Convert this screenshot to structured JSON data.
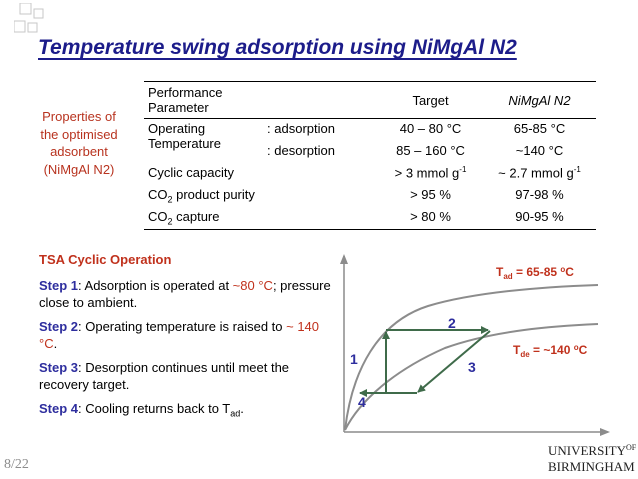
{
  "title": "Temperature swing adsorption using NiMgAl N2",
  "left_note": [
    "Properties of",
    "the optimised",
    "adsorbent",
    "(NiMgAl N2)"
  ],
  "table": {
    "headers": [
      "Performance Parameter",
      "",
      "Target",
      "NiMgAl N2"
    ],
    "rows": [
      {
        "param": "Operating Temperature",
        "sub": ": adsorption",
        "target": "40 – 80 °C",
        "value": "65-85 °C"
      },
      {
        "param": "",
        "sub": ": desorption",
        "target": "85 – 160 °C",
        "value": "~140 °C"
      },
      {
        "param": "Cyclic capacity",
        "sub": "",
        "target_main": "> 3 mmol g",
        "target_sup": "-1",
        "value_main": "~ 2.7 mmol g",
        "value_sup": "-1"
      },
      {
        "param_pre": "CO",
        "param_sub": "2",
        "param_post": " product purity",
        "target": "> 95 %",
        "value": "97-98 %"
      },
      {
        "param_pre": "CO",
        "param_sub": "2",
        "param_post": " capture",
        "target": "> 80 %",
        "value": "90-95 %"
      }
    ]
  },
  "tsa": {
    "heading": "TSA Cyclic Operation",
    "steps": [
      {
        "label": "Step 1",
        "text1": ": Adsorption is operated at ",
        "hl": "~80 °C",
        "text2": "; pressure close to ambient."
      },
      {
        "label": "Step 2",
        "text1": ": Operating temperature is raised to ",
        "hl": "~ 140 °C",
        "text2": "."
      },
      {
        "label": "Step 3",
        "text1": ": Desorption continues until meet the recovery target.",
        "hl": "",
        "text2": ""
      },
      {
        "label": "Step 4",
        "text1": ": Cooling returns back to T",
        "hl": "",
        "text2": "",
        "sub": "ad",
        "end": "."
      }
    ]
  },
  "diagram": {
    "curve_upper_label": {
      "main": "T",
      "sub": "ad",
      "rest": " = 65-85 ",
      "sup": "o",
      "end": "C"
    },
    "curve_lower_label": {
      "main": "T",
      "sub": "de",
      "rest": " = ~140 ",
      "sup": "o",
      "end": "C"
    },
    "step_numbers": [
      "1",
      "2",
      "3",
      "4"
    ],
    "colors": {
      "curve": "#8c8c8c",
      "arrow": "#3f6b4a",
      "number": "#2e2e9e",
      "curve_label": "#c0311c"
    }
  },
  "page_number": "8/22",
  "logo": {
    "line1_main": "UNIVERSITY",
    "line1_sup": "OF",
    "line2": "BIRMINGHAM"
  }
}
